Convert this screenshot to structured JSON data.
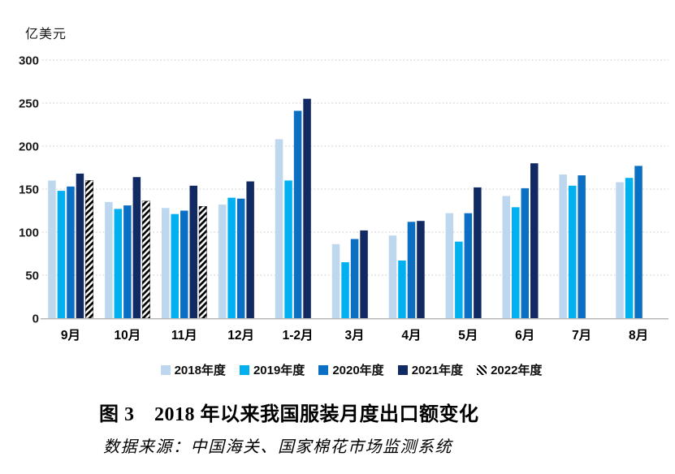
{
  "page": {
    "unit_label": "亿美元",
    "figure_title": "图 3　2018 年以来我国服装月度出口额变化",
    "data_source": "数据来源：中国海关、国家棉花市场监测系统"
  },
  "chart_data": {
    "type": "bar",
    "title": "图 3　2018 年以来我国服装月度出口额变化",
    "unit": "亿美元",
    "categories": [
      "9月",
      "10月",
      "11月",
      "12月",
      "1-2月",
      "3月",
      "4月",
      "5月",
      "6月",
      "7月",
      "8月"
    ],
    "series": [
      {
        "name": "2018年度",
        "color": "#bdd7ee",
        "pattern": "solid",
        "values": [
          160,
          135,
          128,
          132,
          208,
          86,
          96,
          122,
          142,
          167,
          158
        ]
      },
      {
        "name": "2019年度",
        "color": "#00b0f0",
        "pattern": "solid",
        "values": [
          148,
          127,
          121,
          140,
          160,
          65,
          67,
          89,
          129,
          154,
          163
        ]
      },
      {
        "name": "2020年度",
        "color": "#0b70c4",
        "pattern": "solid",
        "values": [
          153,
          131,
          125,
          139,
          241,
          92,
          112,
          122,
          151,
          166,
          177
        ]
      },
      {
        "name": "2021年度",
        "color": "#122a63",
        "pattern": "solid",
        "values": [
          168,
          164,
          154,
          159,
          255,
          102,
          113,
          152,
          180,
          null,
          null
        ]
      },
      {
        "name": "2022年度",
        "color": "#000000",
        "pattern": "diagonal-hatch",
        "values": [
          160,
          136,
          130,
          null,
          null,
          null,
          null,
          null,
          null,
          null,
          null
        ]
      }
    ],
    "ylim": [
      0,
      300
    ],
    "yticks": [
      0,
      50,
      100,
      150,
      200,
      250,
      300
    ],
    "grid": "dotted-horizontal",
    "legend_position": "bottom",
    "axis_color": "#b7b7b7",
    "gridline_color": "#c9c9c9"
  }
}
